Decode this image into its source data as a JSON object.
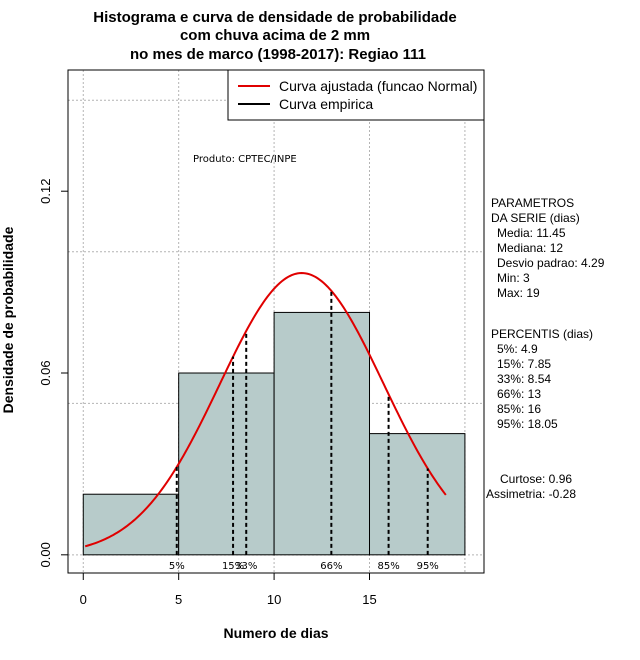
{
  "chart_data": {
    "type": "bar",
    "title_lines": [
      "Histograma e curva de densidade de probabilidade",
      "com chuva acima de 2 mm",
      "no mes de marco (1998-2017): Regiao 111"
    ],
    "xlabel": "Numero de dias",
    "ylabel": "Densidade de probabilidade",
    "xlim": [
      -0.8,
      21
    ],
    "ylim": [
      -0.006,
      0.16
    ],
    "x_ticks": [
      0,
      5,
      10,
      15
    ],
    "y_ticks": [
      0.0,
      0.06,
      0.12
    ],
    "y_tick_labels": [
      "0.00",
      "0.06",
      "0.12"
    ],
    "grid": true,
    "bins": [
      {
        "start": 0,
        "end": 5,
        "density": 0.02
      },
      {
        "start": 5,
        "end": 10,
        "density": 0.06
      },
      {
        "start": 10,
        "end": 15,
        "density": 0.08
      },
      {
        "start": 15,
        "end": 20,
        "density": 0.04
      }
    ],
    "fitted_curve": {
      "name": "Curva ajustada (funcao Normal)",
      "color": "#e00000",
      "mean": 11.45,
      "sd": 4.29,
      "x_range": [
        0.1,
        19
      ]
    },
    "empirical_curve": {
      "name": "Curva empirica",
      "color": "#000000"
    },
    "percentile_markers": [
      {
        "label": "5%",
        "x": 4.9
      },
      {
        "label": "15%",
        "x": 7.85
      },
      {
        "label": "33%",
        "x": 8.54
      },
      {
        "label": "66%",
        "x": 13
      },
      {
        "label": "85%",
        "x": 16
      },
      {
        "label": "95%",
        "x": 18.05
      }
    ],
    "legend_position": "top-right",
    "bar_color": "#b7cbca",
    "annotation": "Produto: CPTEC/INPE"
  },
  "side_panel": {
    "parametros_lines": [
      "PARAMETROS",
      "DA SERIE (dias)",
      "Media: 11.45",
      "Mediana: 12",
      "Desvio padrao: 4.29",
      "Min: 3",
      "Max: 19"
    ],
    "percentis_lines": [
      "PERCENTIS (dias)",
      "5%: 4.9",
      "15%: 7.85",
      "33%: 8.54",
      "66%: 13",
      "85%: 16",
      "95%: 18.05"
    ],
    "curtose": "Curtose: 0.96",
    "assimetria": "Assimetria: -0.28"
  }
}
